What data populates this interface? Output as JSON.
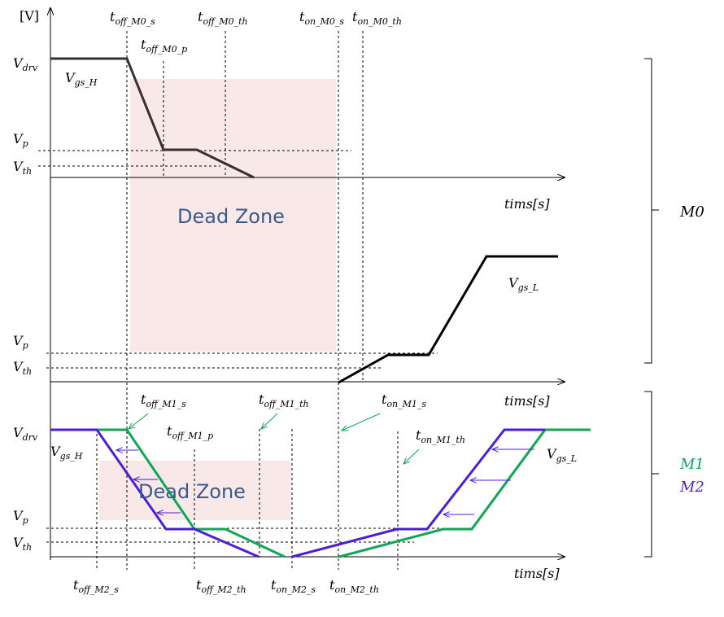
{
  "axis": {
    "unit": "[V]",
    "time_label": "tims[s]"
  },
  "top": {
    "levels": [
      {
        "base": "V",
        "sub": "drv"
      },
      {
        "base": "V",
        "sub": "p"
      },
      {
        "base": "V",
        "sub": "th"
      }
    ],
    "times": [
      {
        "base": "t",
        "sub": "off_M0_s"
      },
      {
        "base": "t",
        "sub": "off_M0_p"
      },
      {
        "base": "t",
        "sub": "off_M0_th"
      },
      {
        "base": "t",
        "sub": "on_M0_s"
      },
      {
        "base": "t",
        "sub": "on_M0_th"
      }
    ],
    "curve_h": {
      "base": "V",
      "sub": "gs_H"
    },
    "curve_l": {
      "base": "V",
      "sub": "gs_L"
    },
    "dead_zone": "Dead Zone",
    "lower_levels": [
      {
        "base": "V",
        "sub": "p"
      },
      {
        "base": "V",
        "sub": "th"
      }
    ],
    "group": "M0"
  },
  "bottom": {
    "levels": [
      {
        "base": "V",
        "sub": "drv"
      },
      {
        "base": "V",
        "sub": "p"
      },
      {
        "base": "V",
        "sub": "th"
      }
    ],
    "times_top": [
      {
        "base": "t",
        "sub": "off_M1_s"
      },
      {
        "base": "t",
        "sub": "off_M1_p"
      },
      {
        "base": "t",
        "sub": "off_M1_th"
      },
      {
        "base": "t",
        "sub": "on_M1_s"
      },
      {
        "base": "t",
        "sub": "on_M1_th"
      }
    ],
    "times_bottom": [
      {
        "base": "t",
        "sub": "off_M2_s"
      },
      {
        "base": "t",
        "sub": "off_M2_th"
      },
      {
        "base": "t",
        "sub": "on_M2_s"
      },
      {
        "base": "t",
        "sub": "on_M2_th"
      }
    ],
    "curve_h": {
      "base": "V",
      "sub": "gs_H"
    },
    "curve_l": {
      "base": "V",
      "sub": "gs_L"
    },
    "dead_zone": "Dead Zone",
    "group_1": "M1",
    "group_2": "M2"
  },
  "colors": {
    "dead_zone": "#f8e8e8",
    "m0_curve": "#3a2f2f",
    "m1_curve": "#11a656",
    "m2_curve": "#4a1fd6",
    "arrow_green": "#11a656",
    "arrow_purple": "#4a1fd6",
    "dead_zone_text": "#3a5a8c"
  }
}
